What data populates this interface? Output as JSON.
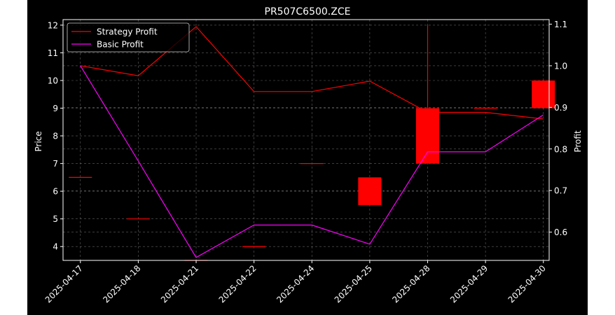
{
  "chart_data": {
    "type": "candlestick-with-lines",
    "title": "PR507C6500.ZCE",
    "xlabel": "",
    "ylabel_left": "Price",
    "ylabel_right": "Profit",
    "grid": true,
    "legend_position": "top-left",
    "categories": [
      "2025-04-17",
      "2025-04-18",
      "2025-04-21",
      "2025-04-22",
      "2025-04-24",
      "2025-04-25",
      "2025-04-28",
      "2025-04-29",
      "2025-04-30"
    ],
    "left_axis": {
      "ylim": [
        3.5,
        12.2
      ],
      "ticks": [
        4,
        5,
        6,
        7,
        8,
        9,
        10,
        11,
        12
      ]
    },
    "right_axis": {
      "ylim": [
        0.532,
        1.111
      ],
      "ticks": [
        0.6,
        0.7,
        0.8,
        0.9,
        1.0
      ],
      "tick_labels": [
        "0.6",
        "0.7",
        "0.8",
        "0.9",
        "1.0"
      ],
      "extra_tick": {
        "value": 1.1,
        "label": "1.1"
      }
    },
    "candles": {
      "color": "#ff0000",
      "open": [
        6.5,
        5.0,
        3.5,
        4.0,
        7.0,
        5.5,
        7.0,
        9.0,
        9.0
      ],
      "close": [
        6.5,
        5.0,
        3.5,
        4.0,
        7.0,
        6.5,
        9.0,
        9.0,
        10.0
      ],
      "high": [
        6.5,
        5.0,
        3.5,
        4.0,
        7.0,
        6.5,
        12.0,
        9.0,
        10.0
      ],
      "low": [
        6.5,
        5.0,
        3.5,
        4.0,
        7.0,
        5.5,
        7.0,
        9.0,
        9.0
      ]
    },
    "series": [
      {
        "name": "Strategy Profit",
        "color": "#ff0000",
        "axis": "right",
        "values": [
          1.0,
          0.976,
          1.094,
          0.938,
          0.938,
          0.963,
          0.888,
          0.888,
          0.872
        ]
      },
      {
        "name": "Basic Profit",
        "color": "#ff00ff",
        "axis": "right",
        "values": [
          1.0,
          0.771,
          0.539,
          0.617,
          0.617,
          0.571,
          0.793,
          0.793,
          0.882
        ]
      }
    ]
  }
}
